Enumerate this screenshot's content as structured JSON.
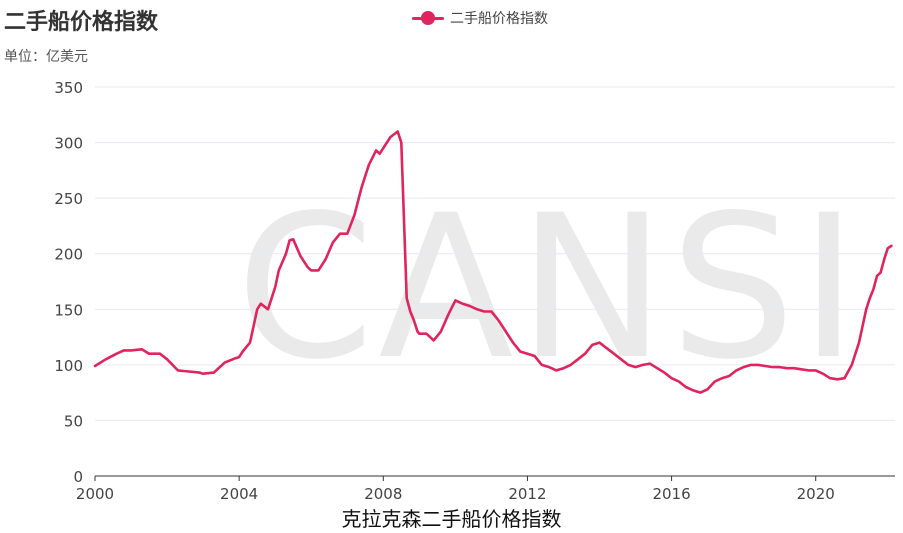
{
  "header": {
    "title": "二手船价格指数",
    "unit": "单位：亿美元"
  },
  "watermark": "CANSI",
  "caption": "克拉克森二手船价格指数",
  "colors": {
    "series": "#e0245e",
    "grid": "#e6e9f0",
    "axis": "#333333"
  },
  "chart_data": {
    "type": "line",
    "title": "二手船价格指数",
    "xlabel": "",
    "ylabel": "",
    "xlim": [
      2000,
      2022.2
    ],
    "ylim": [
      0,
      350
    ],
    "xticks": [
      2000,
      2004,
      2008,
      2012,
      2016,
      2020
    ],
    "yticks": [
      0,
      50,
      100,
      150,
      200,
      250,
      300,
      350
    ],
    "grid": true,
    "legend": "top-center",
    "series": [
      {
        "name": "二手船价格指数",
        "x": [
          2000,
          2000.3,
          2000.6,
          2000.8,
          2001.0,
          2001.3,
          2001.5,
          2001.8,
          2002.0,
          2002.3,
          2002.6,
          2002.9,
          2003.0,
          2003.3,
          2003.6,
          2003.9,
          2004.0,
          2004.1,
          2004.3,
          2004.4,
          2004.5,
          2004.6,
          2004.8,
          2004.9,
          2005.0,
          2005.1,
          2005.3,
          2005.4,
          2005.5,
          2005.7,
          2005.9,
          2006.0,
          2006.2,
          2006.4,
          2006.6,
          2006.8,
          2007.0,
          2007.2,
          2007.4,
          2007.6,
          2007.8,
          2007.9,
          2008.0,
          2008.2,
          2008.4,
          2008.5,
          2008.65,
          2008.75,
          2008.85,
          2008.95,
          2009.0,
          2009.2,
          2009.4,
          2009.6,
          2009.8,
          2010.0,
          2010.2,
          2010.4,
          2010.6,
          2010.8,
          2011.0,
          2011.2,
          2011.4,
          2011.6,
          2011.8,
          2012.0,
          2012.2,
          2012.4,
          2012.6,
          2012.8,
          2013.0,
          2013.2,
          2013.4,
          2013.6,
          2013.8,
          2014.0,
          2014.2,
          2014.4,
          2014.6,
          2014.8,
          2015.0,
          2015.2,
          2015.4,
          2015.6,
          2015.8,
          2016.0,
          2016.2,
          2016.4,
          2016.6,
          2016.8,
          2017.0,
          2017.2,
          2017.4,
          2017.6,
          2017.8,
          2018.0,
          2018.2,
          2018.4,
          2018.6,
          2018.8,
          2019.0,
          2019.2,
          2019.4,
          2019.6,
          2019.8,
          2020.0,
          2020.2,
          2020.4,
          2020.6,
          2020.8,
          2021.0,
          2021.2,
          2021.4,
          2021.5,
          2021.6,
          2021.7,
          2021.8,
          2021.9,
          2022.0,
          2022.1
        ],
        "values": [
          99,
          105,
          110,
          113,
          113,
          114,
          110,
          110,
          105,
          95,
          94,
          93,
          92,
          93,
          102,
          106,
          107,
          112,
          120,
          135,
          150,
          155,
          150,
          160,
          170,
          185,
          200,
          212,
          213,
          198,
          188,
          185,
          185,
          195,
          210,
          218,
          218,
          235,
          260,
          280,
          293,
          290,
          295,
          305,
          310,
          300,
          160,
          148,
          140,
          130,
          128,
          128,
          122,
          130,
          145,
          158,
          155,
          153,
          150,
          148,
          148,
          140,
          130,
          120,
          112,
          110,
          108,
          100,
          98,
          95,
          97,
          100,
          105,
          110,
          118,
          120,
          115,
          110,
          105,
          100,
          98,
          100,
          101,
          97,
          93,
          88,
          85,
          80,
          77,
          75,
          78,
          85,
          88,
          90,
          95,
          98,
          100,
          100,
          99,
          98,
          98,
          97,
          97,
          96,
          95,
          95,
          92,
          88,
          87,
          88,
          100,
          120,
          150,
          160,
          168,
          180,
          183,
          195,
          205,
          207
        ]
      }
    ]
  }
}
